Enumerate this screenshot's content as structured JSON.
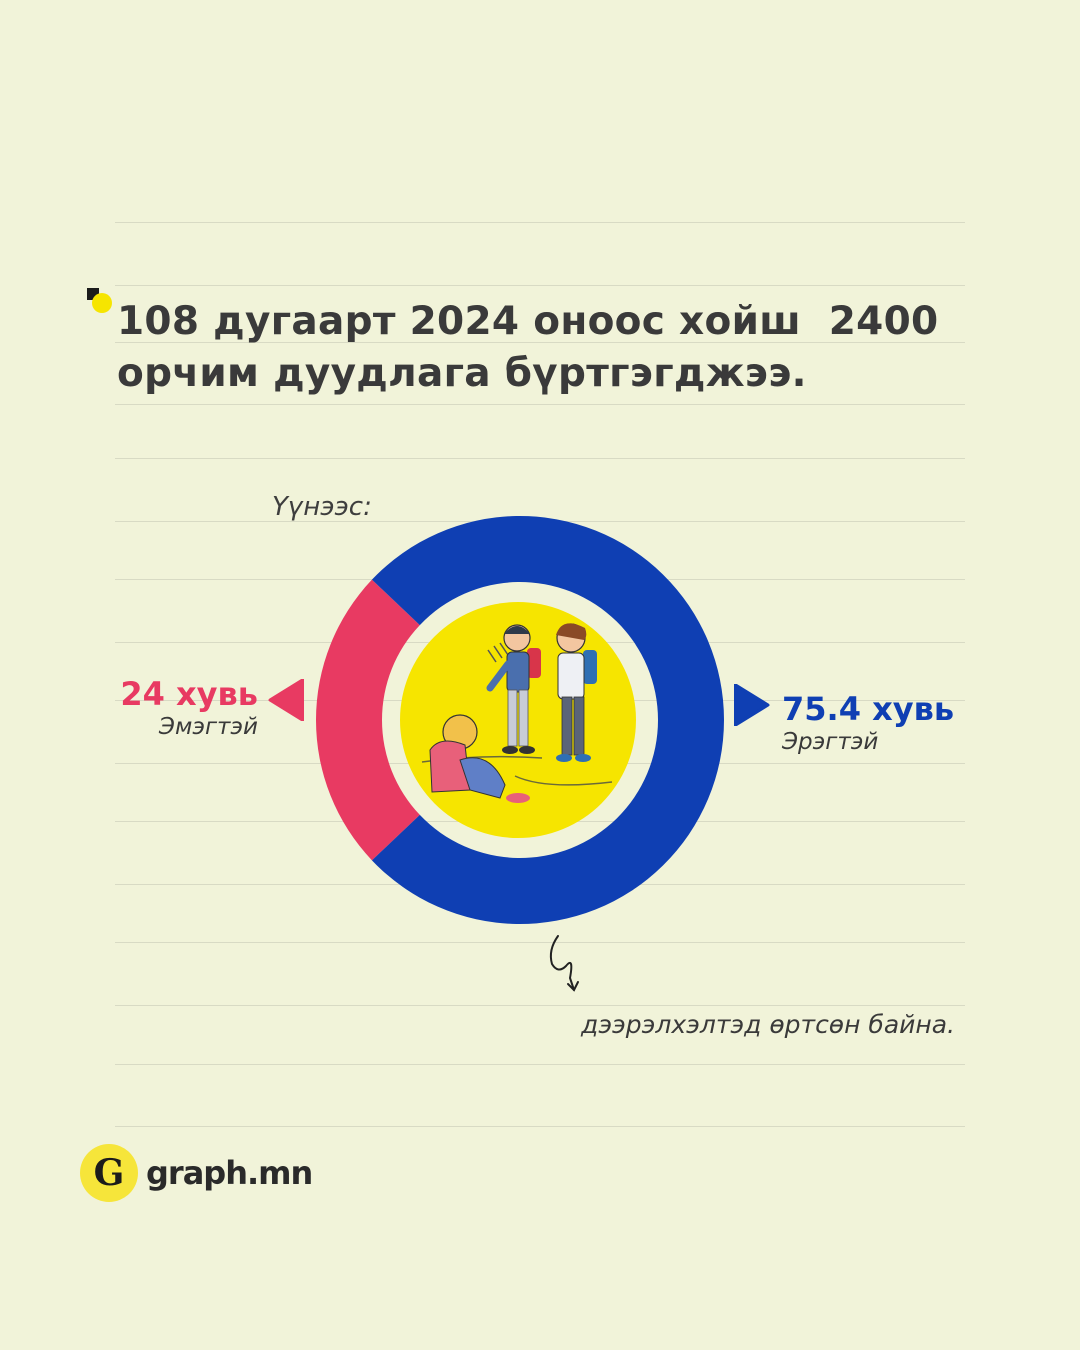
{
  "headline": {
    "line1": "108 дугаарт 2024 оноос хойш  2400",
    "line2": "орчим дуудлага бүртгэгджээ."
  },
  "intro": "Үүнээс:",
  "footnote": "дээрэлхэлтэд өртсөн байна.",
  "brand": {
    "logo_letter": "G",
    "name": "graph.mn"
  },
  "colors": {
    "background": "#f1f3d9",
    "female": "#e83a62",
    "male": "#0f3fb3",
    "illustration_bg": "#f6e500",
    "text": "#3a3a3a"
  },
  "chart_data": {
    "type": "pie",
    "title": "",
    "categories": [
      "Эмэгтэй",
      "Эрэгтэй"
    ],
    "values": [
      24,
      75.4
    ],
    "value_labels": [
      "24 хувь",
      "75.4 хувь"
    ],
    "colors": [
      "#e83a62",
      "#0f3fb3"
    ],
    "donut": true,
    "legend": "none"
  }
}
